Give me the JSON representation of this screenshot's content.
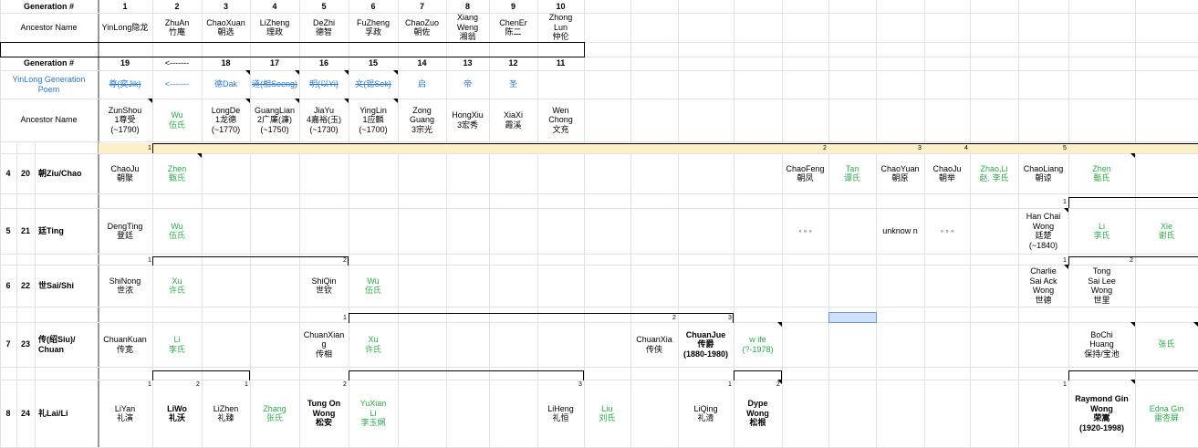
{
  "top": {
    "gen_header": "Generation #",
    "gen_numbers": [
      "1",
      "2",
      "3",
      "4",
      "5",
      "6",
      "7",
      "8",
      "9",
      "10"
    ],
    "ancestor_label": "Ancestor Name",
    "ancestors": [
      "YinLong隐龙",
      "ZhuAn\n竹庵",
      "ChaoXuan\n朝选",
      "LiZheng\n理政",
      "DeZhi\n德智",
      "FuZheng\n孚政",
      "ChaoZuo\n朝佐",
      "Xiang\nWeng\n湘翁",
      "ChenEr\n陈二",
      "Zhong\nLun\n仲伦"
    ]
  },
  "second": {
    "gen_header": "Generation #",
    "gen_numbers": [
      "19",
      "<-------",
      "18",
      "17",
      "16",
      "15",
      "14",
      "13",
      "12",
      "11"
    ],
    "poem_label": "YinLong Generation Poem",
    "poem": [
      "尊(奕Jik)",
      "<-------",
      "德Dak",
      "道(相Soeng)",
      "明(以Yi)",
      "文(锡Sek)",
      "启",
      "帝",
      "圣",
      ""
    ],
    "ancestor_label": "Ancestor Name",
    "ancestors": [
      "ZunShou\n1尊受\n(~1790)",
      "Wu\n伍氏",
      "LongDe\n1龙德\n(~1770)",
      "GuangLian\n2广廉(濂)\n(~1750)",
      "JiaYu\n4嘉裕(玉)\n(~1730)",
      "YingLin\n1应麟\n(~1700)",
      "Zong\nGuang\n3宗光",
      "HongXiu\n3宏秀",
      "XiaXi\n霞溪",
      "Wen\nChong\n文充"
    ]
  },
  "rows": [
    {
      "row": "4",
      "gen": "20",
      "name": "朝Ziu/Chao"
    },
    {
      "row": "5",
      "gen": "21",
      "name": "廷Ting"
    },
    {
      "row": "6",
      "gen": "22",
      "name": "世Sai/Shi"
    },
    {
      "row": "7",
      "gen": "23",
      "name": "传(绍Siu)/\nChuan"
    },
    {
      "row": "8",
      "gen": "24",
      "name": "礼Lai/Li"
    }
  ],
  "bar_numbers": [
    "1",
    "2",
    "3",
    "4",
    "5",
    "1",
    "1",
    "2",
    "1",
    "2",
    "1",
    "2",
    "3",
    "1",
    "2",
    "1",
    "2",
    "3",
    "1",
    "2",
    "1"
  ],
  "cells": {
    "r4": [
      "ChaoJu\n朝聚",
      "Zhen\n甄氏",
      "ChaoFeng\n朝凤",
      "Tan\n谭氏",
      "ChaoYuan\n朝原",
      "ChaoJu\n朝举",
      "Zhao,Li\n赵, 李氏",
      "ChaoLiang\n朝谅",
      "Zhen\n甄氏"
    ],
    "r5": [
      "DengTing\n登廷",
      "Wu\n伍氏",
      "◦ ◦ ◦",
      "unknow n",
      "◦ ◦ ◦",
      "Han Chai\nWong\n廷楚\n(~1840)",
      "Li\n李氏",
      "Xie\n谢氏"
    ],
    "r6": [
      "ShiNong\n世浓",
      "Xu\n许氏",
      "ShiQin\n世钦",
      "Wu\n伍氏",
      "Charlie\nSai Ack\nWong\n世德",
      "Tong\nSai Lee\nWong\n世里"
    ],
    "r7": [
      "ChuanKuan\n传宽",
      "Li\n李氏",
      "ChuanXian\ng\n传相",
      "Xu\n许氏",
      "ChuanXia\n传侠",
      "ChuanJue\n传爵\n(1880-1980)",
      "w ife\n(?-1978)",
      "BoChi\nHuang\n保持/宝池",
      "张氏"
    ],
    "r8": [
      "LiYan\n礼演",
      "LiWo\n礼沃",
      "LiZhen\n礼臻",
      "Zhang\n张氏",
      "Tung On\nWong\n松安",
      "YuXian\nLi\n李玉娴",
      "LiHeng\n礼恒",
      "Liu\n刘氏",
      "LiQing\n礼清",
      "Dype\nWong\n松根",
      "Raymond Gin\nWong\n荣嵩\n(1920-1998)",
      "Edna Gin\n雷杏屏"
    ]
  }
}
